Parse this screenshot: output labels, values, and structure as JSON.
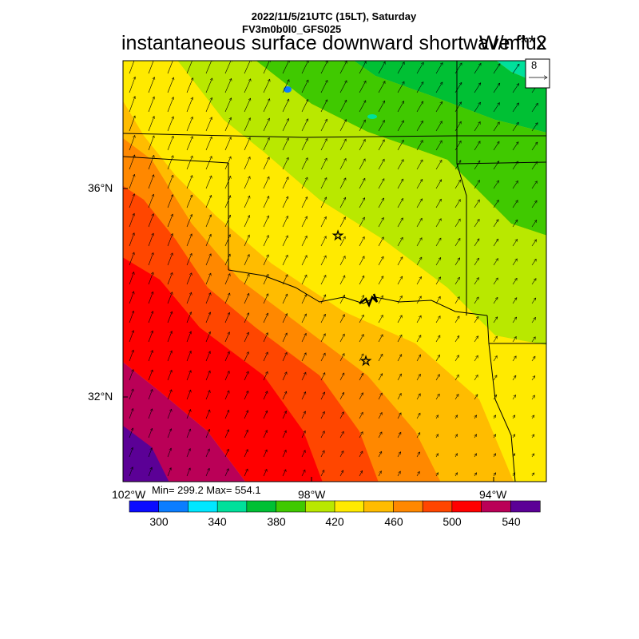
{
  "header": {
    "line1": "2022/11/5/21UTC (15LT), Saturday",
    "line2": "FV3m0b0l0_GFS025",
    "title": "instantaneous surface downward shortwave flux",
    "units": "W/m**2"
  },
  "stats": {
    "text": "Min= 299.2 Max= 554.1",
    "min": 299.2,
    "max": 554.1
  },
  "axes": {
    "lon_labels": [
      "102°W",
      "98°W",
      "94°W"
    ],
    "lat_labels": [
      "36°N",
      "32°N"
    ]
  },
  "vector_reference": {
    "value": "8"
  },
  "colorbar": {
    "colors": [
      "#0b0bff",
      "#0b7dff",
      "#00e7ff",
      "#00e09b",
      "#00c034",
      "#40c900",
      "#b9e800",
      "#ffea00",
      "#ffbc00",
      "#ff8800",
      "#ff4600",
      "#ff0000",
      "#ba0057",
      "#5b0096"
    ],
    "tick_labels": [
      "300",
      "340",
      "380",
      "420",
      "460",
      "500",
      "540"
    ]
  },
  "map_colors": {
    "border_line": "#000000",
    "city_marker": "#000000"
  }
}
